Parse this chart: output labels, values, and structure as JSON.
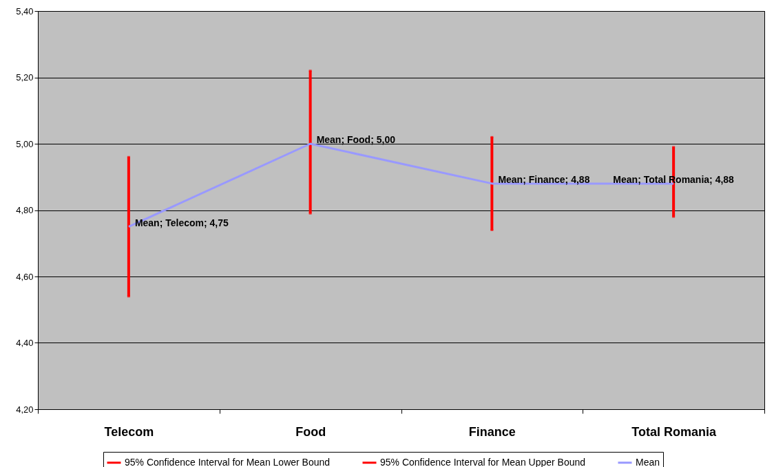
{
  "chart_data": {
    "type": "line",
    "categories": [
      "Telecom",
      "Food",
      "Finance",
      "Total Romania"
    ],
    "series": [
      {
        "name": "95% Confidence Interval for Mean Lower Bound",
        "type": "scatter",
        "color": "#ff0000",
        "values": [
          4.54,
          4.79,
          4.74,
          4.78
        ]
      },
      {
        "name": "95% Confidence Interval for Mean Upper Bound",
        "type": "scatter",
        "color": "#ff0000",
        "values": [
          4.96,
          5.22,
          5.02,
          4.99
        ]
      },
      {
        "name": "Mean",
        "type": "line",
        "color": "#9999ff",
        "values": [
          4.75,
          5.0,
          4.88,
          4.88
        ],
        "value_labels": [
          "Mean; Telecom; 4,75",
          "Mean; Food; 5,00",
          "Mean; Finance; 4,88",
          "Mean; Total Romania; 4,88"
        ]
      }
    ],
    "ylim": [
      4.2,
      5.4
    ],
    "yticks": [
      {
        "value": 4.2,
        "label": "4,20"
      },
      {
        "value": 4.4,
        "label": "4,40"
      },
      {
        "value": 4.6,
        "label": "4,60"
      },
      {
        "value": 4.8,
        "label": "4,80"
      },
      {
        "value": 5.0,
        "label": "5,00"
      },
      {
        "value": 5.2,
        "label": "5,20"
      },
      {
        "value": 5.4,
        "label": "5,40"
      }
    ],
    "grid": "y",
    "legend": "bottom",
    "line_style": "solid"
  }
}
